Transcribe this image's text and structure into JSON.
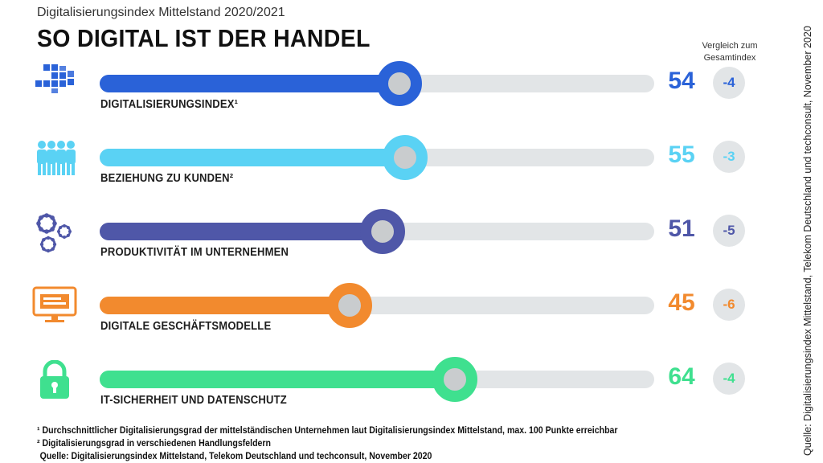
{
  "header": {
    "subtitle": "Digitalisierungsindex Mittelstand 2020/2021",
    "title": "SO DIGITAL IST DER HANDEL",
    "comparison_heading_line1": "Vergleich zum",
    "comparison_heading_line2": "Gesamtindex"
  },
  "chart_data": {
    "type": "bar",
    "orientation": "horizontal",
    "xlim": [
      0,
      100
    ],
    "categories": [
      "DIGITALISIERUNGSINDEX¹",
      "BEZIEHUNG ZU KUNDEN²",
      "PRODUKTIVITÄT IM UNTERNEHMEN",
      "DIGITALE GESCHÄFTSMODELLE",
      "IT-SICHERHEIT UND DATENSCHUTZ"
    ],
    "values": [
      54,
      55,
      51,
      45,
      64
    ],
    "comparison_to_overall": [
      "-4",
      "-3",
      "-5",
      "-6",
      "-4"
    ],
    "colors": [
      "#2a62d8",
      "#5ad2f4",
      "#4f57a8",
      "#f28a2e",
      "#3fe08f"
    ],
    "icons": [
      "blocks-icon",
      "people-icon",
      "gears-icon",
      "monitor-icon",
      "padlock-icon"
    ]
  },
  "footnotes": {
    "note1": "¹ Durchschnittlicher Digitalisierungsgrad der mittelständischen Unternehmen laut Digitalisierungsindex Mittelstand, max. 100 Punkte erreichbar",
    "note2": "² Digitalisierungsgrad in verschiedenen Handlungsfeldern",
    "source": "Quelle: Digitalisierungsindex Mittelstand, Telekom Deutschland und techconsult, November 2020"
  },
  "side_source": "Quelle: Digitalisierungsindex Mittelstand, Telekom Deutschland und techconsult, November 2020"
}
